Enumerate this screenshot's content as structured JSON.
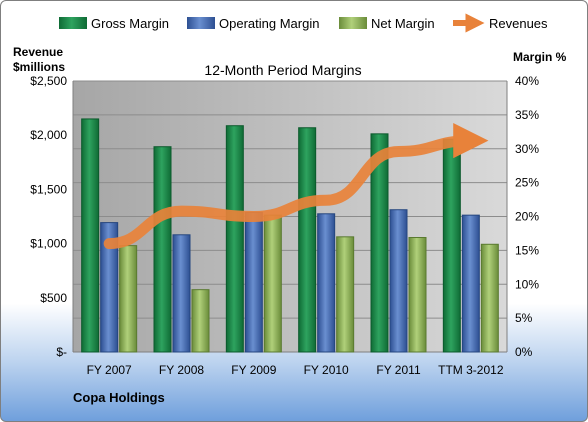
{
  "chart_data": {
    "type": "bar",
    "title": "12-Month Period Margins",
    "company": "Copa Holdings",
    "left_axis": {
      "title_line1": "Revenue",
      "title_line2": "$millions",
      "range": [
        0,
        2500
      ],
      "ticks": [
        "$-",
        "$500",
        "$1,000",
        "$1,500",
        "$2,000",
        "$2,500"
      ]
    },
    "right_axis": {
      "title": "Margin %",
      "range": [
        0,
        40
      ],
      "ticks": [
        "0%",
        "5%",
        "10%",
        "15%",
        "20%",
        "25%",
        "30%",
        "35%",
        "40%"
      ]
    },
    "categories": [
      "FY 2007",
      "FY 2008",
      "FY 2009",
      "FY 2010",
      "FY 2011",
      "TTM 3-2012"
    ],
    "series": [
      {
        "name": "Gross Margin",
        "axis": "right",
        "kind": "bar",
        "values": [
          34.4,
          30.3,
          33.4,
          33.1,
          32.2,
          31.4
        ],
        "color": "#1f8a4c"
      },
      {
        "name": "Operating Margin",
        "axis": "right",
        "kind": "bar",
        "values": [
          19.1,
          17.3,
          20.6,
          20.4,
          21.0,
          20.2
        ],
        "color": "#4a6fb5"
      },
      {
        "name": "Net Margin",
        "axis": "right",
        "kind": "bar",
        "values": [
          15.7,
          9.2,
          20.2,
          17.0,
          16.9,
          15.9
        ],
        "color": "#8fb35a"
      },
      {
        "name": "Revenues",
        "axis": "left",
        "kind": "line",
        "values": [
          1000,
          1300,
          1250,
          1400,
          1850,
          1950
        ],
        "color": "#e8823a"
      }
    ],
    "legend_position": "top",
    "grid": true
  }
}
